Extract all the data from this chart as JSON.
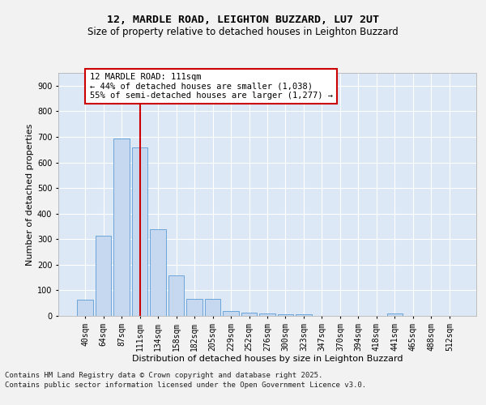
{
  "title_line1": "12, MARDLE ROAD, LEIGHTON BUZZARD, LU7 2UT",
  "title_line2": "Size of property relative to detached houses in Leighton Buzzard",
  "xlabel": "Distribution of detached houses by size in Leighton Buzzard",
  "ylabel": "Number of detached properties",
  "categories": [
    "40sqm",
    "64sqm",
    "87sqm",
    "111sqm",
    "134sqm",
    "158sqm",
    "182sqm",
    "205sqm",
    "229sqm",
    "252sqm",
    "276sqm",
    "300sqm",
    "323sqm",
    "347sqm",
    "370sqm",
    "394sqm",
    "418sqm",
    "441sqm",
    "465sqm",
    "488sqm",
    "512sqm"
  ],
  "values": [
    62,
    315,
    695,
    660,
    338,
    157,
    68,
    68,
    18,
    14,
    9,
    5,
    7,
    0,
    0,
    0,
    0,
    8,
    0,
    0,
    0
  ],
  "bar_color": "#c5d8f0",
  "bar_edge_color": "#5b9bd5",
  "vline_x_index": 3,
  "vline_color": "#cc0000",
  "annotation_text": "12 MARDLE ROAD: 111sqm\n← 44% of detached houses are smaller (1,038)\n55% of semi-detached houses are larger (1,277) →",
  "annotation_box_color": "#ffffff",
  "annotation_box_edge_color": "#cc0000",
  "ylim": [
    0,
    950
  ],
  "yticks": [
    0,
    100,
    200,
    300,
    400,
    500,
    600,
    700,
    800,
    900
  ],
  "plot_bg_color": "#dce8f5",
  "grid_color": "#ffffff",
  "fig_bg_color": "#f2f2f2",
  "footer_line1": "Contains HM Land Registry data © Crown copyright and database right 2025.",
  "footer_line2": "Contains public sector information licensed under the Open Government Licence v3.0.",
  "title_fontsize": 9.5,
  "subtitle_fontsize": 8.5,
  "axis_label_fontsize": 8,
  "tick_fontsize": 7,
  "annotation_fontsize": 7.5,
  "footer_fontsize": 6.5
}
